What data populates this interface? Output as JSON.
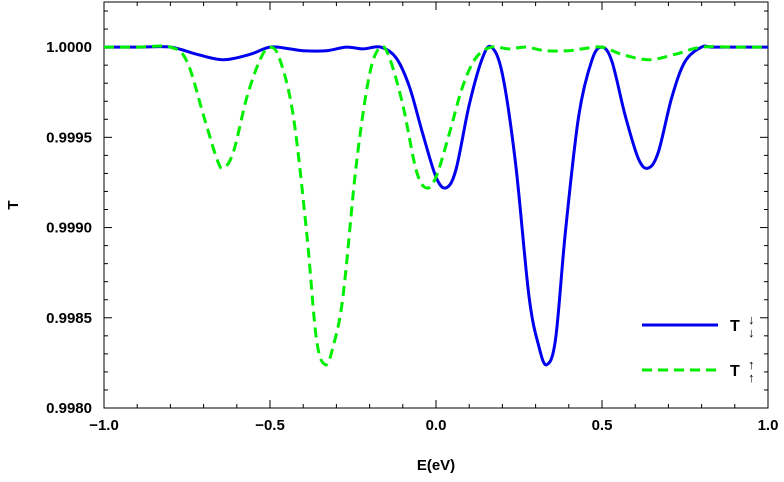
{
  "chart_data": {
    "type": "line",
    "xlabel": "E(eV)",
    "ylabel": "T",
    "xlim": [
      -1.0,
      1.0
    ],
    "ylim": [
      0.998,
      1.00025
    ],
    "xticks": [
      -1.0,
      -0.5,
      0.0,
      0.5,
      1.0
    ],
    "xtick_labels": [
      "−1.0",
      "−0.5",
      "0.0",
      "0.5",
      "1.0"
    ],
    "yticks": [
      0.998,
      0.9985,
      0.999,
      0.9995,
      1.0
    ],
    "ytick_labels": [
      "0.9980",
      "0.9985",
      "0.9990",
      "0.9995",
      "1.0000"
    ],
    "grid": false,
    "legend_position": "bottom-right",
    "series": [
      {
        "name": "T↓↓",
        "base": "T",
        "marks": [
          "↓",
          "↓"
        ],
        "color": "#0000ee",
        "style": "solid",
        "x": [
          -1.0,
          -0.9,
          -0.8,
          -0.72,
          -0.64,
          -0.56,
          -0.5,
          -0.44,
          -0.4,
          -0.33,
          -0.27,
          -0.22,
          -0.167,
          -0.12,
          -0.08,
          -0.04,
          0.0,
          0.03,
          0.06,
          0.1,
          0.14,
          0.167,
          0.2,
          0.24,
          0.28,
          0.31,
          0.333,
          0.36,
          0.39,
          0.43,
          0.47,
          0.5,
          0.53,
          0.57,
          0.61,
          0.64,
          0.67,
          0.71,
          0.75,
          0.8,
          0.83,
          0.9,
          1.0
        ],
        "y": [
          1.0,
          1.0,
          1.0,
          0.99996,
          0.99993,
          0.99996,
          1.0,
          0.99999,
          0.99998,
          0.99998,
          1.0,
          0.99999,
          1.0,
          0.99994,
          0.99978,
          0.99952,
          0.99928,
          0.99922,
          0.99932,
          0.99968,
          0.99994,
          1.0,
          0.99985,
          0.99935,
          0.99862,
          0.99834,
          0.99824,
          0.99838,
          0.99898,
          0.99962,
          0.99993,
          1.0,
          0.99992,
          0.99962,
          0.99938,
          0.99933,
          0.99942,
          0.99972,
          0.99992,
          1.0,
          1.0,
          1.0,
          1.0
        ]
      },
      {
        "name": "T↑↑",
        "base": "T",
        "marks": [
          "↑",
          "↑"
        ],
        "color": "#00ee00",
        "style": "dashed",
        "x": [
          -1.0,
          -0.9,
          -0.8,
          -0.75,
          -0.7,
          -0.66,
          -0.64,
          -0.61,
          -0.57,
          -0.53,
          -0.5,
          -0.47,
          -0.43,
          -0.39,
          -0.36,
          -0.333,
          -0.31,
          -0.28,
          -0.24,
          -0.2,
          -0.167,
          -0.14,
          -0.1,
          -0.06,
          -0.03,
          0.0,
          0.04,
          0.08,
          0.12,
          0.167,
          0.22,
          0.27,
          0.33,
          0.4,
          0.44,
          0.5,
          0.56,
          0.64,
          0.72,
          0.8,
          0.9,
          1.0
        ],
        "y": [
          1.0,
          1.0,
          1.0,
          0.99992,
          0.99962,
          0.99938,
          0.99933,
          0.99942,
          0.99972,
          0.99993,
          1.0,
          0.99993,
          0.99962,
          0.99898,
          0.99838,
          0.99824,
          0.99834,
          0.99862,
          0.99935,
          0.99985,
          1.0,
          0.99994,
          0.99968,
          0.99932,
          0.99922,
          0.99928,
          0.99952,
          0.99978,
          0.99994,
          1.0,
          0.99999,
          1.0,
          0.99998,
          0.99998,
          0.99999,
          1.0,
          0.99996,
          0.99993,
          0.99996,
          1.0,
          1.0,
          1.0
        ]
      }
    ]
  }
}
